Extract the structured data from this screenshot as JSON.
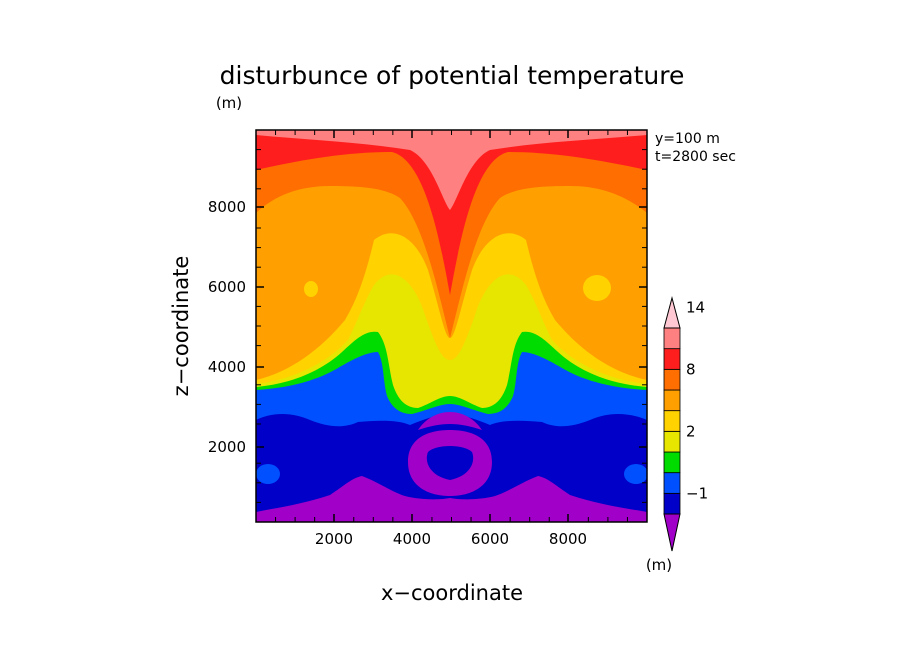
{
  "chart_data": {
    "type": "heatmap",
    "title": "disturbunce of potential temperature",
    "y_unit": "(m)",
    "xlabel": "x−coordinate",
    "ylabel": "z−coordinate",
    "xlim": [
      0,
      10000
    ],
    "ylim": [
      0,
      10000
    ],
    "x_ticks": [
      "2000",
      "4000",
      "6000",
      "8000"
    ],
    "x_tick_values": [
      2000,
      4000,
      6000,
      8000
    ],
    "y_ticks": [
      "2000",
      "4000",
      "6000",
      "8000"
    ],
    "y_tick_values": [
      2000,
      4000,
      6000,
      8000
    ],
    "annotations": [
      "y=100 m",
      "t=2800 sec"
    ],
    "colorbar": {
      "unit": "(m)",
      "tick_labels": [
        "−1",
        "2",
        "8",
        "14"
      ],
      "levels": [
        -2,
        -1,
        0,
        1,
        2,
        4,
        6,
        8,
        10,
        12,
        14
      ],
      "colors": [
        "#a000c8",
        "#0000c8",
        "#0050ff",
        "#00dc00",
        "#e6e600",
        "#ffd200",
        "#ffa000",
        "#ff6e00",
        "#ff1e1e",
        "#ff8080",
        "#ffc8d2"
      ]
    },
    "regions": [
      {
        "name": "upper-layer",
        "value": "12 to 14",
        "level_index": 9
      },
      {
        "name": "red-band",
        "value": "10 to 12",
        "level_index": 8
      },
      {
        "name": "orange-band",
        "value": "8 to 10",
        "level_index": 7
      },
      {
        "name": "light-orange-band",
        "value": "6 to 8",
        "level_index": 6
      },
      {
        "name": "amber-band",
        "value": "4 to 6",
        "level_index": 5
      },
      {
        "name": "yellow-band",
        "value": "2 to 4",
        "level_index": 4
      },
      {
        "name": "green-band",
        "value": "1 to 2",
        "level_index": 3
      },
      {
        "name": "blue-band",
        "value": "0 to 1",
        "level_index": 2
      },
      {
        "name": "dark-blue-band",
        "value": "-1 to 0",
        "level_index": 1
      },
      {
        "name": "purple-surface-layer",
        "value": "below -1",
        "level_index": 0
      }
    ]
  }
}
